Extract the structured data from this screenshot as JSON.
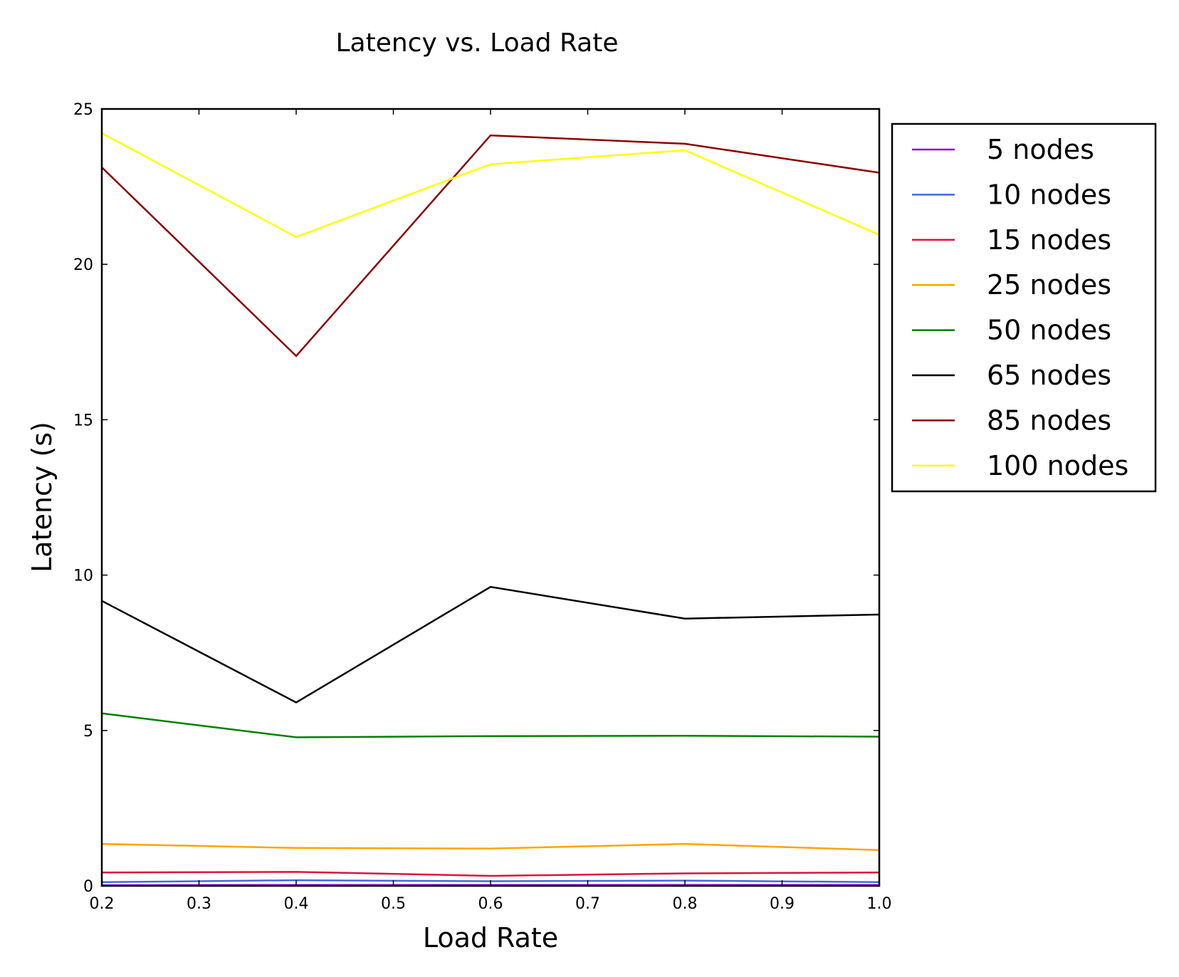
{
  "chart_data": {
    "type": "line",
    "title": "Latency vs. Load Rate",
    "xlabel": "Load Rate",
    "ylabel": "Latency (s)",
    "xlim": [
      0.2,
      1.0
    ],
    "ylim": [
      0,
      25
    ],
    "xticks": [
      "0.2",
      "0.3",
      "0.4",
      "0.5",
      "0.6",
      "0.7",
      "0.8",
      "0.9",
      "1.0"
    ],
    "yticks": [
      "0",
      "5",
      "10",
      "15",
      "20",
      "25"
    ],
    "grid": false,
    "legend_position": "outside-right-top",
    "x": [
      0.2,
      0.4,
      0.6,
      0.8,
      1.0
    ],
    "series": [
      {
        "name": "5 nodes",
        "color": "#8B00D0",
        "values": [
          0.02,
          0.03,
          0.03,
          0.03,
          0.03
        ]
      },
      {
        "name": "10 nodes",
        "color": "#4169E1",
        "values": [
          0.12,
          0.18,
          0.15,
          0.17,
          0.12
        ]
      },
      {
        "name": "15 nodes",
        "color": "#DC143C",
        "values": [
          0.43,
          0.45,
          0.32,
          0.4,
          0.43
        ]
      },
      {
        "name": "25 nodes",
        "color": "#FFA500",
        "values": [
          1.35,
          1.22,
          1.2,
          1.35,
          1.15
        ]
      },
      {
        "name": "50 nodes",
        "color": "#008000",
        "values": [
          5.55,
          4.78,
          4.82,
          4.83,
          4.8
        ]
      },
      {
        "name": "65 nodes",
        "color": "#000000",
        "values": [
          9.17,
          5.9,
          9.62,
          8.6,
          8.73
        ]
      },
      {
        "name": "85 nodes",
        "color": "#8B0000",
        "values": [
          23.12,
          17.05,
          24.15,
          23.88,
          22.95
        ]
      },
      {
        "name": "100 nodes",
        "color": "#FFFF00",
        "values": [
          24.22,
          20.88,
          23.22,
          23.67,
          20.95
        ]
      }
    ]
  }
}
